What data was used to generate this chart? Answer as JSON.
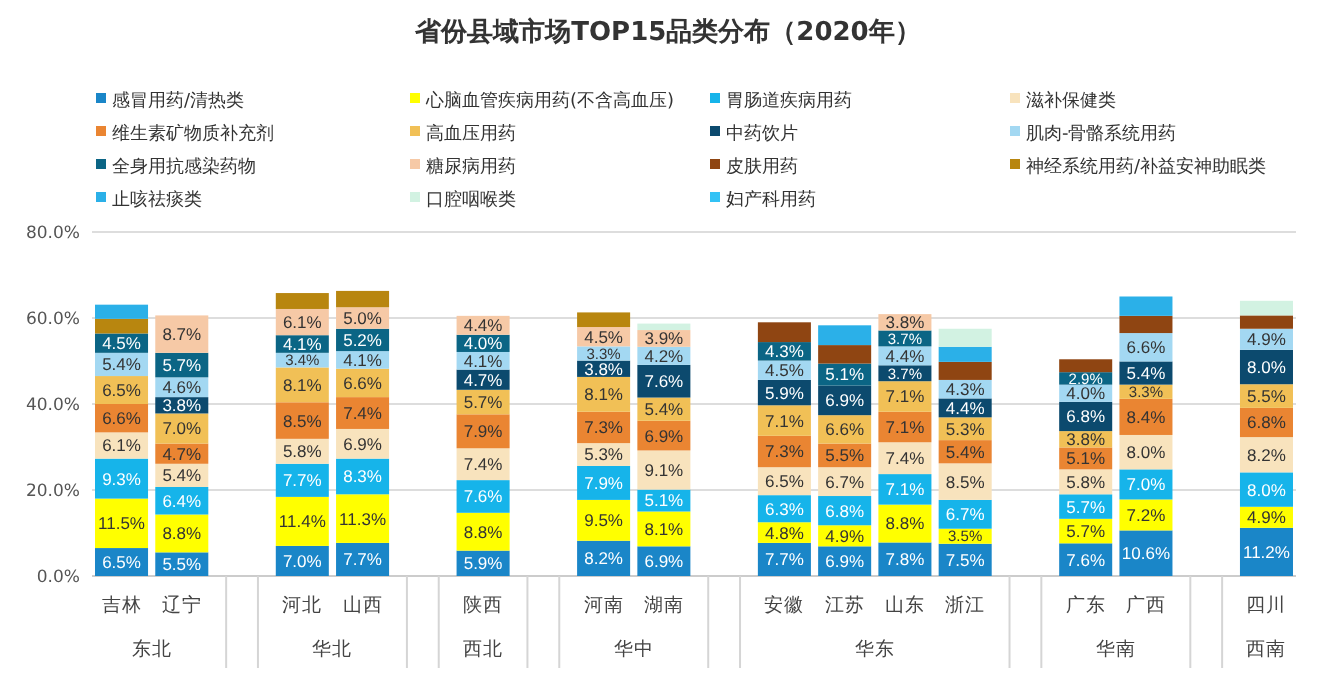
{
  "chart_data": {
    "type": "bar",
    "stacked": true,
    "title": "省份县域市场TOP15品类分布（2020年）",
    "categories": [
      "吉林",
      "辽宁",
      null,
      "河北",
      "山西",
      null,
      "陕西",
      null,
      "河南",
      "湖南",
      null,
      "安徽",
      "江苏",
      "山东",
      "浙江",
      null,
      "广东",
      "广西",
      null,
      "四川"
    ],
    "annotations": [
      "东北",
      "华北",
      "西北",
      "华中",
      "华东",
      "华南",
      "西南"
    ],
    "ylim": [
      0,
      80
    ],
    "yticks": [
      {
        "value": 0,
        "label": "0.0%"
      },
      {
        "value": 20,
        "label": "20.0%"
      },
      {
        "value": 40,
        "label": "40.0%"
      },
      {
        "value": 60,
        "label": "60.0%"
      },
      {
        "value": 80,
        "label": "80.0%"
      }
    ],
    "grid": "y",
    "legend": "top",
    "series": [
      {
        "name": "感冒用药/清热类",
        "color": "#1a86c8",
        "values": [
          6.5,
          5.5,
          null,
          7.0,
          7.7,
          null,
          5.9,
          null,
          8.2,
          6.9,
          null,
          7.7,
          6.9,
          7.8,
          7.5,
          null,
          7.6,
          10.6,
          null,
          11.2
        ],
        "value_labels": [
          "6.5%",
          "5.5%",
          null,
          "7.0%",
          "7.7%",
          null,
          "5.9%",
          null,
          "8.2%",
          "6.9%",
          null,
          "7.7%",
          "6.9%",
          "7.8%",
          "7.5%",
          null,
          "7.6%",
          "10.6%",
          null,
          "11.2%"
        ]
      },
      {
        "name": "心脑血管疾病用药(不含高血压)",
        "color": "#ffff00",
        "values": [
          11.5,
          8.8,
          null,
          11.4,
          11.3,
          null,
          8.8,
          null,
          9.5,
          8.1,
          null,
          4.8,
          4.9,
          8.8,
          3.5,
          null,
          5.7,
          7.2,
          null,
          4.9
        ],
        "value_labels": [
          "11.5%",
          "8.8%",
          null,
          "11.4%",
          "11.3%",
          null,
          "8.8%",
          null,
          "9.5%",
          "8.1%",
          null,
          "4.8%",
          "4.9%",
          "8.8%",
          "3.5%",
          null,
          "5.7%",
          "7.2%",
          null,
          "4.9%"
        ]
      },
      {
        "name": "胃肠道疾病用药",
        "color": "#16b4ea",
        "values": [
          9.3,
          6.4,
          null,
          7.7,
          8.3,
          null,
          7.6,
          null,
          7.9,
          5.1,
          null,
          6.3,
          6.8,
          7.1,
          6.7,
          null,
          5.7,
          7.0,
          null,
          8.0
        ],
        "value_labels": [
          "9.3%",
          "6.4%",
          null,
          "7.7%",
          "8.3%",
          null,
          "7.6%",
          null,
          "7.9%",
          "5.1%",
          null,
          "6.3%",
          "6.8%",
          "7.1%",
          "6.7%",
          null,
          "5.7%",
          "7.0%",
          null,
          "8.0%"
        ]
      },
      {
        "name": "滋补保健类",
        "color": "#f8e3bd",
        "values": [
          6.1,
          5.4,
          null,
          5.8,
          6.9,
          null,
          7.4,
          null,
          5.3,
          9.1,
          null,
          6.5,
          6.7,
          7.4,
          8.5,
          null,
          5.8,
          8.0,
          null,
          8.2
        ],
        "value_labels": [
          "6.1%",
          "5.4%",
          null,
          "5.8%",
          "6.9%",
          null,
          "7.4%",
          null,
          "5.3%",
          "9.1%",
          null,
          "6.5%",
          "6.7%",
          "7.4%",
          "8.5%",
          null,
          "5.8%",
          "8.0%",
          null,
          "8.2%"
        ]
      },
      {
        "name": "维生素矿物质补充剂",
        "color": "#ea8532",
        "values": [
          6.6,
          4.7,
          null,
          8.5,
          7.4,
          null,
          7.9,
          null,
          7.3,
          6.9,
          null,
          7.3,
          5.5,
          7.1,
          5.4,
          null,
          5.1,
          8.4,
          null,
          6.8
        ],
        "value_labels": [
          "6.6%",
          "4.7%",
          null,
          "8.5%",
          "7.4%",
          null,
          "7.9%",
          null,
          "7.3%",
          "6.9%",
          null,
          "7.3%",
          "5.5%",
          "7.1%",
          "5.4%",
          null,
          "5.1%",
          "8.4%",
          null,
          "6.8%"
        ]
      },
      {
        "name": "高血压用药",
        "color": "#f1c056",
        "values": [
          6.5,
          7.0,
          null,
          8.1,
          6.6,
          null,
          5.7,
          null,
          8.1,
          5.4,
          null,
          7.1,
          6.6,
          7.1,
          5.3,
          null,
          3.8,
          3.3,
          null,
          5.5
        ],
        "value_labels": [
          "6.5%",
          "7.0%",
          null,
          "8.1%",
          "6.6%",
          null,
          "5.7%",
          null,
          "8.1%",
          "5.4%",
          null,
          "7.1%",
          "6.6%",
          "7.1%",
          "5.3%",
          null,
          "3.8%",
          "3.3%",
          null,
          "5.5%"
        ]
      },
      {
        "name": "中药饮片",
        "color": "#0c4a6e",
        "values": [
          null,
          3.8,
          null,
          null,
          null,
          null,
          4.7,
          null,
          3.8,
          7.6,
          null,
          5.9,
          6.9,
          3.7,
          4.4,
          null,
          6.8,
          5.4,
          null,
          8.0
        ],
        "value_labels": [
          null,
          "3.8%",
          null,
          null,
          null,
          null,
          "4.7%",
          null,
          "3.8%",
          "7.6%",
          null,
          "5.9%",
          "6.9%",
          "3.7%",
          "4.4%",
          null,
          "6.8%",
          "5.4%",
          null,
          "8.0%"
        ]
      },
      {
        "name": "肌肉-骨骼系统用药",
        "color": "#a3d8f2",
        "values": [
          5.4,
          4.6,
          null,
          3.4,
          4.1,
          null,
          4.1,
          null,
          3.3,
          4.2,
          null,
          4.5,
          null,
          4.4,
          4.3,
          null,
          4.0,
          6.6,
          null,
          4.9
        ],
        "value_labels": [
          "5.4%",
          "4.6%",
          null,
          "3.4%",
          "4.1%",
          null,
          "4.1%",
          null,
          "3.3%",
          "4.2%",
          null,
          "4.5%",
          null,
          "4.4%",
          "4.3%",
          null,
          "4.0%",
          "6.6%",
          null,
          "4.9%"
        ]
      },
      {
        "name": "全身用抗感染药物",
        "color": "#0b6585",
        "values": [
          4.5,
          5.7,
          null,
          4.1,
          5.2,
          null,
          4.0,
          null,
          null,
          null,
          null,
          4.3,
          5.1,
          3.7,
          null,
          null,
          2.9,
          null,
          null,
          null
        ],
        "value_labels": [
          "4.5%",
          "5.7%",
          null,
          "4.1%",
          "5.2%",
          null,
          "4.0%",
          null,
          null,
          null,
          null,
          "4.3%",
          "5.1%",
          "3.7%",
          null,
          null,
          "2.9%",
          null,
          null,
          null
        ]
      },
      {
        "name": "糖尿病用药",
        "color": "#f6c9a6",
        "values": [
          null,
          8.7,
          null,
          6.1,
          5.0,
          null,
          4.4,
          null,
          4.5,
          3.9,
          null,
          null,
          null,
          3.8,
          null,
          null,
          null,
          null,
          null,
          null
        ],
        "value_labels": [
          null,
          "8.7%",
          null,
          "6.1%",
          "5.0%",
          null,
          "4.4%",
          null,
          "4.5%",
          "3.9%",
          null,
          null,
          null,
          "3.8%",
          null,
          null,
          null,
          null,
          null,
          null
        ]
      },
      {
        "name": "皮肤用药",
        "color": "#8f4512",
        "values": [
          null,
          null,
          null,
          null,
          null,
          null,
          null,
          null,
          null,
          null,
          null,
          4.6,
          4.3,
          null,
          4.2,
          null,
          3.0,
          4.0,
          null,
          3.1
        ]
      },
      {
        "name": "神经系统用药/补益安神助眠类",
        "color": "#b8860f",
        "values": [
          3.4,
          null,
          null,
          3.7,
          3.8,
          null,
          null,
          null,
          3.4,
          null,
          null,
          null,
          null,
          null,
          null,
          null,
          null,
          null,
          null,
          null
        ]
      },
      {
        "name": "止咳祛痰类",
        "color": "#2bb0e8",
        "values": [
          3.3,
          null,
          null,
          null,
          null,
          null,
          null,
          null,
          null,
          null,
          null,
          null,
          4.6,
          null,
          3.5,
          null,
          null,
          4.5,
          null,
          null
        ]
      },
      {
        "name": "口腔咽喉类",
        "color": "#d2f2e2",
        "values": [
          null,
          null,
          null,
          null,
          null,
          null,
          null,
          null,
          null,
          1.5,
          null,
          null,
          null,
          null,
          4.2,
          null,
          null,
          null,
          null,
          3.4
        ]
      },
      {
        "name": "妇产科用药",
        "color": "#33c2f5",
        "values": [
          null,
          null,
          null,
          null,
          null,
          null,
          null,
          null,
          null,
          null,
          null,
          null,
          null,
          null,
          null,
          null,
          null,
          null,
          null,
          null
        ]
      }
    ]
  }
}
